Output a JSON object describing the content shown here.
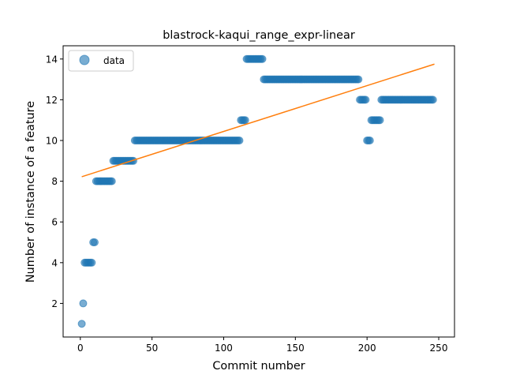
{
  "chart_data": {
    "type": "scatter",
    "title": "blastrock-kaqui_range_expr-linear",
    "xlabel": "Commit number",
    "ylabel": "Number of instance of a feature",
    "xlim": [
      -12,
      261
    ],
    "ylim": [
      0.35,
      14.65
    ],
    "xticks": [
      0,
      50,
      100,
      150,
      200,
      250
    ],
    "yticks": [
      2,
      4,
      6,
      8,
      10,
      12,
      14
    ],
    "grid": false,
    "legend": {
      "position": "upper-left",
      "entries": [
        "data"
      ]
    },
    "colors": {
      "data": "#1f77b4",
      "fit": "#ff7f0e"
    },
    "series": [
      {
        "name": "data",
        "kind": "scatter",
        "alpha": 0.6,
        "runs": [
          {
            "x_start": 1,
            "x_end": 1,
            "y": 1
          },
          {
            "x_start": 2,
            "x_end": 2,
            "y": 2
          },
          {
            "x_start": 3,
            "x_end": 8,
            "y": 4
          },
          {
            "x_start": 9,
            "x_end": 10,
            "y": 5
          },
          {
            "x_start": 11,
            "x_end": 22,
            "y": 8
          },
          {
            "x_start": 23,
            "x_end": 37,
            "y": 9
          },
          {
            "x_start": 38,
            "x_end": 111,
            "y": 10
          },
          {
            "x_start": 112,
            "x_end": 115,
            "y": 11
          },
          {
            "x_start": 116,
            "x_end": 127,
            "y": 14
          },
          {
            "x_start": 128,
            "x_end": 194,
            "y": 13
          },
          {
            "x_start": 195,
            "x_end": 199,
            "y": 12
          },
          {
            "x_start": 200,
            "x_end": 202,
            "y": 10
          },
          {
            "x_start": 203,
            "x_end": 209,
            "y": 11
          },
          {
            "x_start": 210,
            "x_end": 246,
            "y": 12
          }
        ]
      },
      {
        "kind": "line",
        "x": [
          1,
          247
        ],
        "y": [
          8.22,
          13.75
        ]
      }
    ]
  }
}
